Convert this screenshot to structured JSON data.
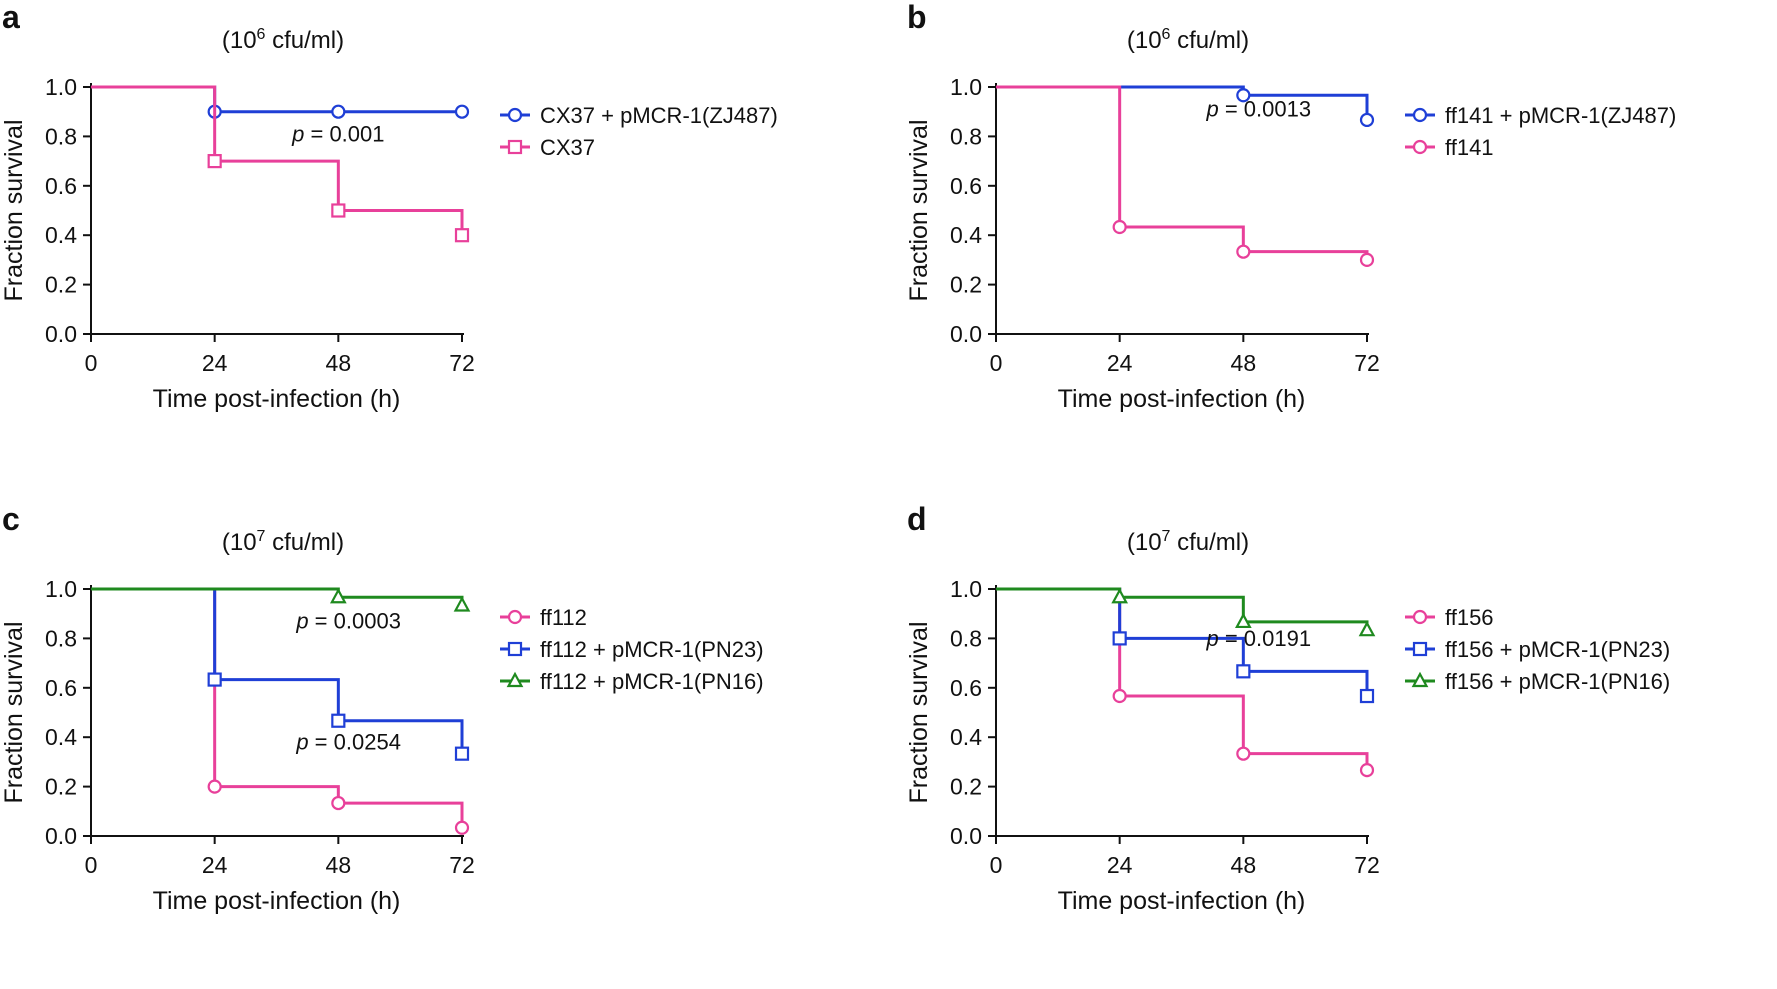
{
  "chart_data": [
    {
      "type": "line",
      "subtype": "kaplan-meier",
      "panel": "a",
      "title": "(10",
      "title_sup": "6",
      "title_suffix": " cfu/ml)",
      "xlabel": "Time post-infection (h)",
      "ylabel": "Fraction survival",
      "xlim": [
        0,
        72
      ],
      "ylim": [
        0,
        1
      ],
      "xticks": [
        "0",
        "24",
        "48",
        "72"
      ],
      "yticks": [
        "0.0",
        "0.2",
        "0.4",
        "0.6",
        "0.8",
        "1.0"
      ],
      "legend_position": "right",
      "annotations": [
        {
          "prefix": "p",
          "text": " = 0.001",
          "x": 48,
          "y": 0.78
        }
      ],
      "series": [
        {
          "name": "CX37 + pMCR-1(ZJ487)",
          "color": "#1f3fd6",
          "marker": "circle",
          "steps": [
            [
              0,
              1.0
            ],
            [
              24,
              0.9
            ],
            [
              48,
              0.9
            ],
            [
              72,
              0.9
            ]
          ],
          "censored": [
            [
              24,
              0.9
            ],
            [
              48,
              0.9
            ],
            [
              72,
              0.9
            ]
          ]
        },
        {
          "name": "CX37",
          "color": "#e8409a",
          "marker": "square",
          "steps": [
            [
              0,
              1.0
            ],
            [
              24,
              0.7
            ],
            [
              48,
              0.5
            ],
            [
              72,
              0.4
            ]
          ],
          "censored": [
            [
              24,
              0.7
            ],
            [
              48,
              0.5
            ],
            [
              72,
              0.4
            ]
          ]
        }
      ]
    },
    {
      "type": "line",
      "subtype": "kaplan-meier",
      "panel": "b",
      "title": "(10",
      "title_sup": "6",
      "title_suffix": " cfu/ml)",
      "xlabel": "Time post-infection (h)",
      "ylabel": "Fraction survival",
      "xlim": [
        0,
        72
      ],
      "ylim": [
        0,
        1
      ],
      "xticks": [
        "0",
        "24",
        "48",
        "72"
      ],
      "yticks": [
        "0.0",
        "0.2",
        "0.4",
        "0.6",
        "0.8",
        "1.0"
      ],
      "legend_position": "right",
      "annotations": [
        {
          "prefix": "p",
          "text": " = 0.0013",
          "x": 51,
          "y": 0.88
        }
      ],
      "series": [
        {
          "name": "ff141 + pMCR-1(ZJ487)",
          "color": "#1f3fd6",
          "marker": "circle",
          "steps": [
            [
              0,
              1.0
            ],
            [
              48,
              0.9667
            ],
            [
              72,
              0.8667
            ]
          ],
          "censored": [
            [
              48,
              0.9667
            ],
            [
              72,
              0.8667
            ]
          ]
        },
        {
          "name": "ff141",
          "color": "#e8409a",
          "marker": "circle",
          "steps": [
            [
              0,
              1.0
            ],
            [
              24,
              0.4333
            ],
            [
              48,
              0.3333
            ],
            [
              72,
              0.3
            ]
          ],
          "censored": [
            [
              24,
              0.4333
            ],
            [
              48,
              0.3333
            ],
            [
              72,
              0.3
            ]
          ]
        }
      ]
    },
    {
      "type": "line",
      "subtype": "kaplan-meier",
      "panel": "c",
      "title": "(10",
      "title_sup": "7",
      "title_suffix": " cfu/ml)",
      "xlabel": "Time post-infection (h)",
      "ylabel": "Fraction survival",
      "xlim": [
        0,
        72
      ],
      "ylim": [
        0,
        1
      ],
      "xticks": [
        "0",
        "24",
        "48",
        "72"
      ],
      "yticks": [
        "0.0",
        "0.2",
        "0.4",
        "0.6",
        "0.8",
        "1.0"
      ],
      "legend_position": "right",
      "annotations": [
        {
          "prefix": "p",
          "text": " = 0.0003",
          "x": 50,
          "y": 0.84
        },
        {
          "prefix": "p",
          "text": " = 0.0254",
          "x": 50,
          "y": 0.35
        }
      ],
      "series": [
        {
          "name": "ff112",
          "color": "#e8409a",
          "marker": "circle",
          "steps": [
            [
              0,
              1.0
            ],
            [
              24,
              0.2
            ],
            [
              48,
              0.1333
            ],
            [
              72,
              0.0333
            ]
          ],
          "censored": [
            [
              24,
              0.2
            ],
            [
              48,
              0.1333
            ],
            [
              72,
              0.0333
            ]
          ]
        },
        {
          "name": "ff112 + pMCR-1(PN23)",
          "color": "#1f3fd6",
          "marker": "square",
          "steps": [
            [
              0,
              1.0
            ],
            [
              24,
              0.6333
            ],
            [
              48,
              0.4667
            ],
            [
              72,
              0.3333
            ]
          ],
          "censored": [
            [
              24,
              0.6333
            ],
            [
              48,
              0.4667
            ],
            [
              72,
              0.3333
            ]
          ]
        },
        {
          "name": "ff112 + pMCR-1(PN16)",
          "color": "#1f8a1f",
          "marker": "triangle",
          "steps": [
            [
              0,
              1.0
            ],
            [
              48,
              0.9667
            ],
            [
              72,
              0.9333
            ]
          ],
          "censored": [
            [
              48,
              0.9667
            ],
            [
              72,
              0.9333
            ]
          ]
        }
      ]
    },
    {
      "type": "line",
      "subtype": "kaplan-meier",
      "panel": "d",
      "title": "(10",
      "title_sup": "7",
      "title_suffix": " cfu/ml)",
      "xlabel": "Time post-infection (h)",
      "ylabel": "Fraction survival",
      "xlim": [
        0,
        72
      ],
      "ylim": [
        0,
        1
      ],
      "xticks": [
        "0",
        "24",
        "48",
        "72"
      ],
      "yticks": [
        "0.0",
        "0.2",
        "0.4",
        "0.6",
        "0.8",
        "1.0"
      ],
      "legend_position": "right",
      "annotations": [
        {
          "prefix": "p",
          "text": " = 0.0191",
          "x": 51,
          "y": 0.77
        }
      ],
      "series": [
        {
          "name": "ff156",
          "color": "#e8409a",
          "marker": "circle",
          "steps": [
            [
              0,
              1.0
            ],
            [
              24,
              0.5667
            ],
            [
              48,
              0.3333
            ],
            [
              72,
              0.2667
            ]
          ],
          "censored": [
            [
              24,
              0.5667
            ],
            [
              48,
              0.3333
            ],
            [
              72,
              0.2667
            ]
          ]
        },
        {
          "name": "ff156 + pMCR-1(PN23)",
          "color": "#1f3fd6",
          "marker": "square",
          "steps": [
            [
              0,
              1.0
            ],
            [
              24,
              0.8
            ],
            [
              48,
              0.6667
            ],
            [
              72,
              0.5667
            ]
          ],
          "censored": [
            [
              24,
              0.8
            ],
            [
              48,
              0.6667
            ],
            [
              72,
              0.5667
            ]
          ]
        },
        {
          "name": "ff156 + pMCR-1(PN16)",
          "color": "#1f8a1f",
          "marker": "triangle",
          "steps": [
            [
              0,
              1.0
            ],
            [
              24,
              0.9667
            ],
            [
              48,
              0.8667
            ],
            [
              72,
              0.8333
            ]
          ],
          "censored": [
            [
              24,
              0.9667
            ],
            [
              48,
              0.8667
            ],
            [
              72,
              0.8333
            ]
          ]
        }
      ]
    }
  ]
}
